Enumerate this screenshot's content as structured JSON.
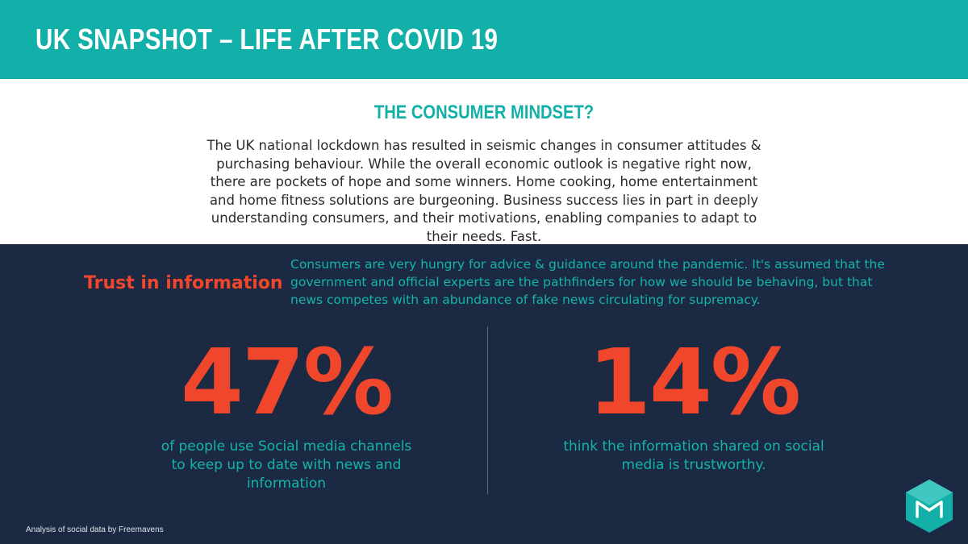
{
  "header": {
    "title": "UK SNAPSHOT – LIFE AFTER COVID 19"
  },
  "mindset": {
    "heading": "THE CONSUMER MINDSET?",
    "body": "The UK national lockdown has resulted in seismic changes in consumer attitudes & purchasing behaviour. While the overall economic outlook is negative right now, there are pockets of hope and some winners. Home cooking, home entertainment and home fitness solutions are burgeoning. Business success lies in part in deeply understanding consumers, and their motivations, enabling companies to adapt to their needs. Fast."
  },
  "trust": {
    "title": "Trust in information",
    "text": "Consumers are very hungry for advice & guidance around the pandemic. It's assumed that the government and official experts are the pathfinders for how we should be behaving, but that news competes with an abundance of fake news circulating for supremacy."
  },
  "stats": [
    {
      "value": "47%",
      "description": "of people use Social media channels to keep up to date with news and information"
    },
    {
      "value": "14%",
      "description": "think the information shared on social media is trustworthy."
    }
  ],
  "footer": {
    "source": "Analysis of social data by Freemavens"
  },
  "logo": {
    "icon": "freemavens-hexagon-logo",
    "color": "#12b0a8"
  },
  "colors": {
    "teal": "#12b0a8",
    "navy": "#1b2a42",
    "orange": "#f0462b",
    "white": "#ffffff"
  }
}
